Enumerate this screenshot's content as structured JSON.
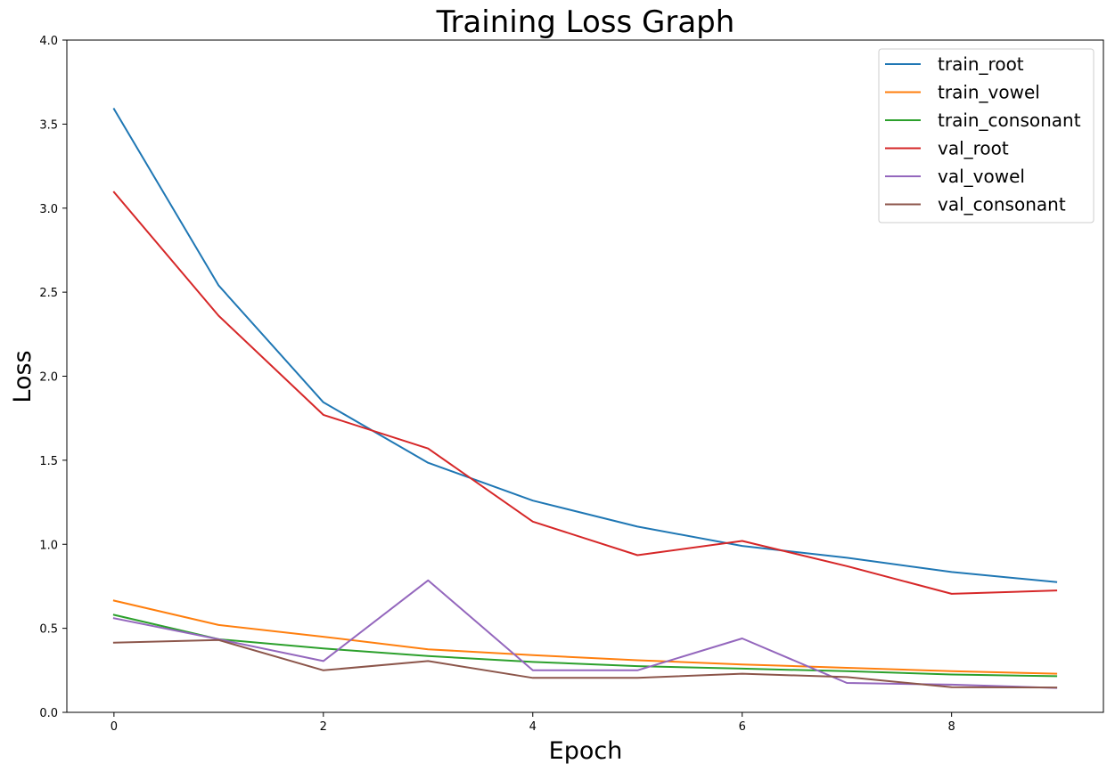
{
  "chart_data": {
    "type": "line",
    "title": "Training Loss Graph",
    "xlabel": "Epoch",
    "ylabel": "Loss",
    "x": [
      0,
      1,
      2,
      3,
      4,
      5,
      6,
      7,
      8,
      9
    ],
    "xlim": [
      -0.45,
      9.45
    ],
    "ylim": [
      0,
      4
    ],
    "xticks": [
      0,
      2,
      4,
      6,
      8
    ],
    "yticks": [
      "0.0",
      "0.5",
      "1.0",
      "1.5",
      "2.0",
      "2.5",
      "3.0",
      "3.5",
      "4.0"
    ],
    "grid": false,
    "legend_position": "top-right",
    "series": [
      {
        "name": "train_root",
        "color": "#1f77b4",
        "values": [
          3.59,
          2.54,
          1.845,
          1.485,
          1.26,
          1.105,
          0.99,
          0.92,
          0.835,
          0.775
        ]
      },
      {
        "name": "train_vowel",
        "color": "#ff7f0e",
        "values": [
          0.665,
          0.52,
          0.45,
          0.375,
          0.34,
          0.31,
          0.285,
          0.265,
          0.245,
          0.23
        ]
      },
      {
        "name": "train_consonant",
        "color": "#2ca02c",
        "values": [
          0.58,
          0.435,
          0.38,
          0.335,
          0.3,
          0.275,
          0.26,
          0.245,
          0.225,
          0.215
        ]
      },
      {
        "name": "val_root",
        "color": "#d62728",
        "values": [
          3.095,
          2.36,
          1.77,
          1.57,
          1.135,
          0.935,
          1.02,
          0.87,
          0.705,
          0.725
        ]
      },
      {
        "name": "val_vowel",
        "color": "#9467bd",
        "values": [
          0.56,
          0.435,
          0.305,
          0.785,
          0.25,
          0.25,
          0.44,
          0.175,
          0.165,
          0.145
        ]
      },
      {
        "name": "val_consonant",
        "color": "#8c564b",
        "values": [
          0.415,
          0.43,
          0.25,
          0.305,
          0.205,
          0.205,
          0.23,
          0.21,
          0.15,
          0.148
        ]
      }
    ]
  }
}
